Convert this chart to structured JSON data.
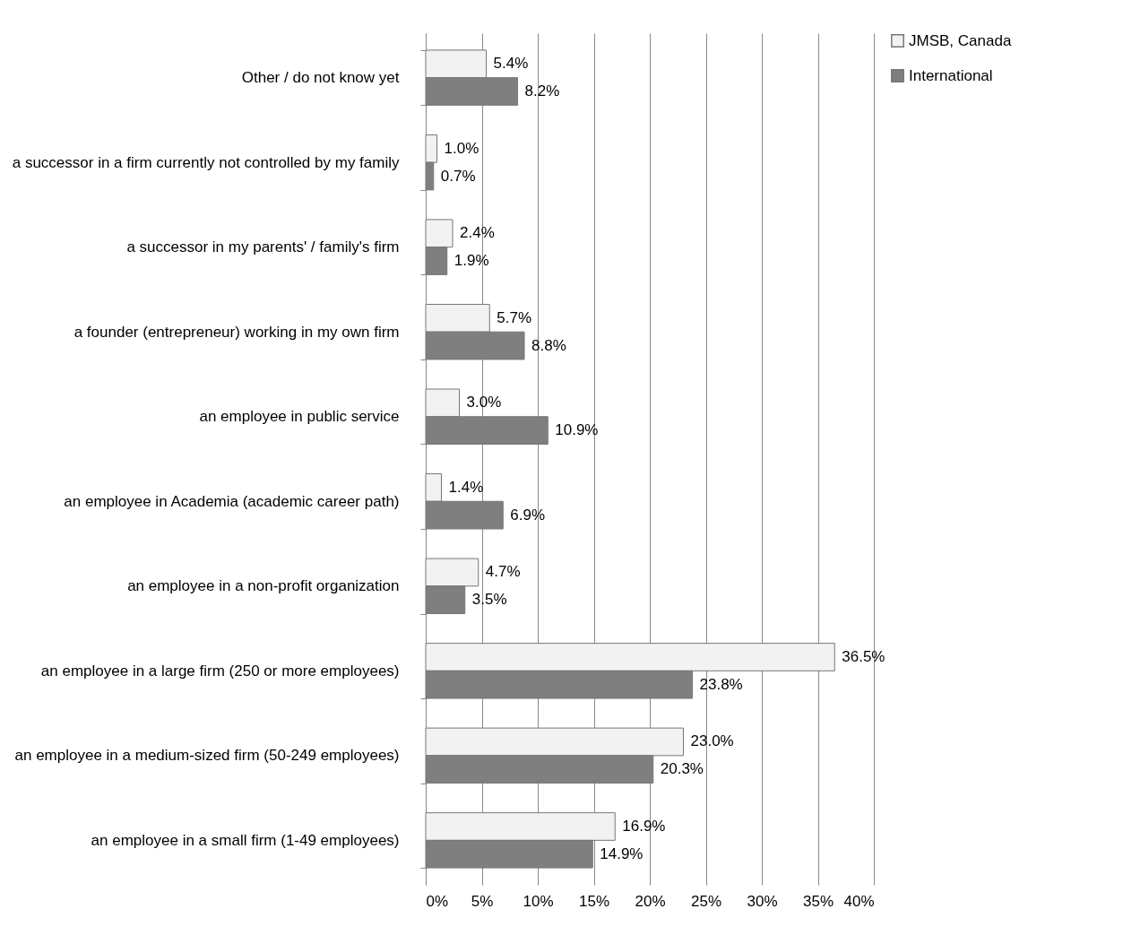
{
  "chart_data": {
    "type": "bar",
    "orientation": "horizontal",
    "categories": [
      "Other / do not know yet",
      "a successor in a firm currently not controlled by my family",
      "a successor in my parents' / family's firm",
      "a founder (entrepreneur) working in my own firm",
      "an employee in public service",
      "an employee in Academia (academic career path)",
      "an employee in a non-profit organization",
      "an employee in a large firm (250 or more employees)",
      "an employee in a medium-sized firm (50-249 employees)",
      "an employee in a small firm (1-49 employees)"
    ],
    "series": [
      {
        "name": "JMSB, Canada",
        "color": "#f2f2f2",
        "values": [
          5.4,
          1.0,
          2.4,
          5.7,
          3.0,
          1.4,
          4.7,
          36.5,
          23.0,
          16.9
        ],
        "value_labels": [
          "5.4%",
          "1.0%",
          "2.4%",
          "5.7%",
          "3.0%",
          "1.4%",
          "4.7%",
          "36.5%",
          "23.0%",
          "16.9%"
        ]
      },
      {
        "name": "International",
        "color": "#7f7f7f",
        "values": [
          8.2,
          0.7,
          1.9,
          8.8,
          10.9,
          6.9,
          3.5,
          23.8,
          20.3,
          14.9
        ],
        "value_labels": [
          "8.2%",
          "0.7%",
          "1.9%",
          "8.8%",
          "10.9%",
          "6.9%",
          "3.5%",
          "23.8%",
          "20.3%",
          "14.9%"
        ]
      }
    ],
    "xlim": [
      0,
      40
    ],
    "xticks": [
      {
        "value": 0,
        "label": "0%"
      },
      {
        "value": 5,
        "label": "5%"
      },
      {
        "value": 10,
        "label": "10%"
      },
      {
        "value": 15,
        "label": "15%"
      },
      {
        "value": 20,
        "label": "20%"
      },
      {
        "value": 25,
        "label": "25%"
      },
      {
        "value": 30,
        "label": "30%"
      },
      {
        "value": 35,
        "label": "35%"
      },
      {
        "value": 40,
        "label": "40%"
      }
    ],
    "grid": "x",
    "legend": "right"
  }
}
